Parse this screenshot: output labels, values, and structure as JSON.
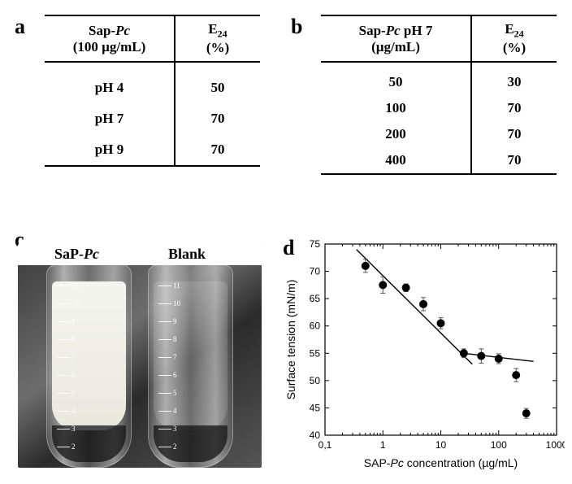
{
  "panelA": {
    "label": "a",
    "header_col1_line1": "Sap-",
    "header_col1_ital": "Pc",
    "header_col1_line2": "(100 µg/mL)",
    "header_col2_main": "E",
    "header_col2_sub": "24",
    "header_col2_line2": "(%)",
    "rows": [
      {
        "c1": "pH 4",
        "c2": "50"
      },
      {
        "c1": "pH 7",
        "c2": "70"
      },
      {
        "c1": "pH 9",
        "c2": "70"
      }
    ],
    "fontsize_header": 17,
    "fontsize_body": 17,
    "border_color": "#000000"
  },
  "panelB": {
    "label": "b",
    "header_col1_line1a": "Sap-",
    "header_col1_ital": "Pc",
    "header_col1_line1b": " pH 7",
    "header_col1_line2": "(µg/mL)",
    "header_col2_main": "E",
    "header_col2_sub": "24",
    "header_col2_line2": "(%)",
    "rows": [
      {
        "c1": "50",
        "c2": "30"
      },
      {
        "c1": "100",
        "c2": "70"
      },
      {
        "c1": "200",
        "c2": "70"
      },
      {
        "c1": "400",
        "c2": "70"
      }
    ],
    "fontsize_header": 17,
    "fontsize_body": 17,
    "border_color": "#000000"
  },
  "panelC": {
    "label": "c",
    "left_label": "SaP-Pc",
    "right_label": "Blank",
    "label_fontsize": 18,
    "label_color": "#000000",
    "grad_marks": [
      11,
      10,
      9,
      8,
      7,
      6,
      5,
      4,
      3,
      2
    ]
  },
  "panelD": {
    "label": "d",
    "type": "scatter-loglinear",
    "xlabel_prefix": "SAP-",
    "xlabel_ital": "Pc",
    "xlabel_suffix": " concentration (µg/mL)",
    "ylabel": "Surface tension (mN/m)",
    "xlim": [
      0.1,
      1000
    ],
    "xscale": "log",
    "ylim": [
      40,
      75
    ],
    "ytick_step": 5,
    "xticks": [
      0.1,
      1,
      10,
      100,
      1000
    ],
    "xtick_labels": [
      "0,1",
      "1",
      "10",
      "100",
      "1000"
    ],
    "marker_color": "#000000",
    "marker_size": 5,
    "error_color": "#555555",
    "line_color": "#000000",
    "line_width": 1.4,
    "axis_color": "#000000",
    "background_color": "#ffffff",
    "label_fontsize": 14,
    "tick_fontsize": 12,
    "points": [
      {
        "x": 0.5,
        "y": 71,
        "err": 1.2
      },
      {
        "x": 1,
        "y": 67.5,
        "err": 1.5
      },
      {
        "x": 2.5,
        "y": 67,
        "err": 0.7
      },
      {
        "x": 5,
        "y": 64,
        "err": 1.2
      },
      {
        "x": 10,
        "y": 60.5,
        "err": 1.0
      },
      {
        "x": 25,
        "y": 55,
        "err": 0.8
      },
      {
        "x": 50,
        "y": 54.5,
        "err": 1.3
      },
      {
        "x": 100,
        "y": 54,
        "err": 0.9
      },
      {
        "x": 200,
        "y": 51,
        "err": 1.2
      },
      {
        "x": 300,
        "y": 44,
        "err": 0.9
      }
    ],
    "fit_lines": [
      {
        "x1": 0.35,
        "y1": 74,
        "x2": 35,
        "y2": 53
      },
      {
        "x1": 25,
        "y1": 55,
        "x2": 400,
        "y2": 53.5
      }
    ]
  },
  "colors": {
    "text": "#000000",
    "background": "#ffffff",
    "rule": "#000000"
  }
}
